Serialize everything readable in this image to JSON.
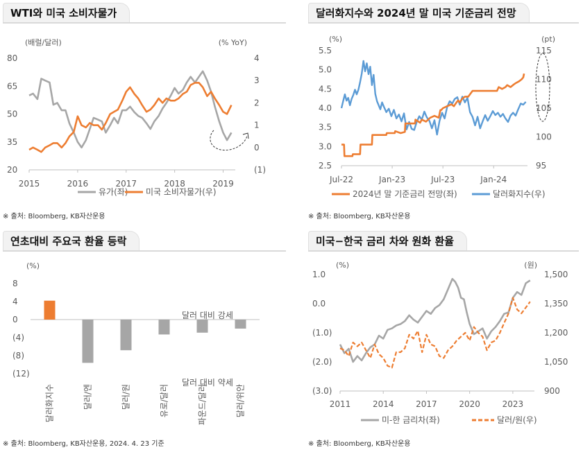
{
  "panels": [
    {
      "title": "WTI와 미국 소비자물가",
      "source": "※ 출처: Bloomberg, KB자산운용"
    },
    {
      "title": "달러화지수와 2024년 말 미국 기준금리 전망",
      "source": "※ 출처: Bloomberg, KB자산운용"
    },
    {
      "title": "연초대비 주요국 환율 등락",
      "source": "※ 출처: Bloomberg, KB자산운용, 2024. 4. 23 기준"
    },
    {
      "title": "미국−한국 금리 차와 원화 환율",
      "source": "※ 출처: Bloomberg, KB자산운용"
    }
  ],
  "chart_data": [
    {
      "type": "line",
      "left_unit": "(배럴/달러)",
      "right_unit": "(% YoY)",
      "x_ticks": [
        "2015",
        "2016",
        "2017",
        "2018",
        "2019"
      ],
      "xlim": [
        2015,
        2019.25
      ],
      "ylim_left": [
        20,
        80
      ],
      "yticks_left": [
        "20",
        "35",
        "50",
        "65",
        "80"
      ],
      "ylim_right": [
        -1,
        4
      ],
      "yticks_right": [
        "(1)",
        "0",
        "1",
        "2",
        "3",
        "4"
      ],
      "series": [
        {
          "name": "유가(좌)",
          "axis": "left",
          "color": "#a6a6a6",
          "x": [
            2015.0,
            2015.08,
            2015.17,
            2015.25,
            2015.33,
            2015.42,
            2015.5,
            2015.58,
            2015.67,
            2015.75,
            2015.83,
            2015.92,
            2016.0,
            2016.08,
            2016.17,
            2016.25,
            2016.33,
            2016.42,
            2016.5,
            2016.58,
            2016.67,
            2016.75,
            2016.83,
            2016.92,
            2017.0,
            2017.08,
            2017.17,
            2017.25,
            2017.33,
            2017.42,
            2017.5,
            2017.58,
            2017.67,
            2017.75,
            2017.83,
            2017.92,
            2018.0,
            2018.08,
            2018.17,
            2018.25,
            2018.33,
            2018.42,
            2018.5,
            2018.58,
            2018.67,
            2018.75,
            2018.83,
            2018.92,
            2019.0,
            2019.08,
            2019.17
          ],
          "y": [
            60,
            61,
            58,
            69,
            68,
            67,
            55,
            56,
            52,
            52,
            45,
            40,
            35,
            32,
            36,
            42,
            48,
            47,
            46,
            40,
            44,
            48,
            45,
            52,
            52,
            54,
            51,
            49,
            48,
            45,
            42,
            46,
            49,
            53,
            56,
            60,
            64,
            61,
            63,
            67,
            70,
            67,
            70,
            73,
            68,
            62,
            54,
            46,
            40,
            36,
            40
          ]
        },
        {
          "name": "미국 소비자물가(우)",
          "axis": "right",
          "color": "#ed7d31",
          "x": [
            2015.0,
            2015.08,
            2015.17,
            2015.25,
            2015.33,
            2015.42,
            2015.5,
            2015.58,
            2015.67,
            2015.75,
            2015.83,
            2015.92,
            2016.0,
            2016.08,
            2016.17,
            2016.25,
            2016.33,
            2016.42,
            2016.5,
            2016.58,
            2016.67,
            2016.75,
            2016.83,
            2016.92,
            2017.0,
            2017.08,
            2017.17,
            2017.25,
            2017.33,
            2017.42,
            2017.5,
            2017.58,
            2017.67,
            2017.75,
            2017.83,
            2017.92,
            2018.0,
            2018.08,
            2018.17,
            2018.25,
            2018.33,
            2018.42,
            2018.5,
            2018.58,
            2018.67,
            2018.75,
            2018.83,
            2018.92,
            2019.0,
            2019.08,
            2019.17
          ],
          "y": [
            -0.1,
            0.0,
            -0.1,
            -0.2,
            0.0,
            0.1,
            0.2,
            0.2,
            0.0,
            0.2,
            0.5,
            0.7,
            1.4,
            1.0,
            0.9,
            1.1,
            1.0,
            1.0,
            0.8,
            1.1,
            1.5,
            1.6,
            1.7,
            2.1,
            2.5,
            2.7,
            2.4,
            2.2,
            1.9,
            1.6,
            1.7,
            1.9,
            2.2,
            2.0,
            2.2,
            2.1,
            2.1,
            2.2,
            2.4,
            2.5,
            2.8,
            2.9,
            2.9,
            2.7,
            2.3,
            2.5,
            2.2,
            1.9,
            1.6,
            1.5,
            1.9
          ]
        }
      ]
    },
    {
      "type": "line",
      "left_unit": "(%)",
      "right_unit": "(pt)",
      "x_ticks": [
        "Jul-22",
        "Jan-23",
        "Jul-23",
        "Jan-24"
      ],
      "ylim_left": [
        2.5,
        5.5
      ],
      "yticks_left": [
        "2.5",
        "3.0",
        "3.5",
        "4.0",
        "4.5",
        "5.0",
        "5.5"
      ],
      "ylim_right": [
        95,
        115
      ],
      "yticks_right": [
        "95",
        "100",
        "105",
        "110",
        "115"
      ],
      "series": [
        {
          "name": "2024년 말 기준금리 전망(좌)",
          "axis": "left",
          "color": "#ed7d31",
          "x": [
            0,
            0.3,
            0.35,
            1.3,
            1.35,
            2.2,
            2.25,
            3.6,
            3.65,
            5.3,
            5.35,
            6.3,
            6.35,
            7.0,
            7.5,
            7.55,
            8.7,
            8.75,
            9.3,
            9.5,
            10.0,
            10.5,
            11.0,
            11.5,
            11.7,
            11.8,
            12.0,
            12.5,
            13.0,
            13.3,
            13.6,
            13.8,
            14.0,
            14.3,
            14.6,
            15.0,
            15.5,
            16.0,
            16.5,
            17.5,
            18.4,
            18.6,
            19.0,
            19.4,
            19.6,
            20.0,
            20.4,
            20.6,
            21.0,
            21.3,
            21.5,
            21.6
          ],
          "y": [
            3.05,
            3.05,
            2.75,
            2.75,
            2.8,
            2.8,
            3.05,
            3.05,
            3.3,
            3.3,
            3.35,
            3.35,
            3.4,
            3.35,
            3.38,
            3.6,
            3.6,
            3.7,
            3.62,
            3.7,
            3.65,
            3.75,
            3.8,
            3.75,
            3.95,
            3.95,
            4.0,
            4.05,
            4.1,
            4.05,
            4.15,
            4.2,
            4.15,
            4.25,
            4.3,
            4.3,
            4.45,
            4.45,
            4.45,
            4.45,
            4.45,
            4.55,
            4.5,
            4.55,
            4.6,
            4.55,
            4.62,
            4.65,
            4.7,
            4.75,
            4.8,
            4.9
          ]
        },
        {
          "name": "달러화지수(우)",
          "axis": "right",
          "color": "#5b9bd5",
          "x": [
            0,
            0.2,
            0.4,
            0.6,
            0.8,
            1.0,
            1.2,
            1.4,
            1.6,
            1.8,
            2.0,
            2.2,
            2.4,
            2.6,
            2.8,
            3.0,
            3.2,
            3.4,
            3.6,
            3.8,
            4.0,
            4.2,
            4.4,
            4.6,
            4.8,
            5.0,
            5.3,
            5.6,
            5.9,
            6.2,
            6.5,
            6.8,
            7.1,
            7.4,
            7.7,
            8.0,
            8.3,
            8.6,
            8.9,
            9.2,
            9.5,
            9.8,
            10.1,
            10.4,
            10.7,
            11.0,
            11.3,
            11.6,
            11.9,
            12.2,
            12.5,
            12.8,
            13.1,
            13.4,
            13.7,
            14.0,
            14.3,
            14.6,
            14.9,
            15.2,
            15.5,
            15.8,
            16.1,
            16.4,
            16.7,
            17.0,
            17.3,
            17.6,
            17.9,
            18.2,
            18.5,
            18.8,
            19.1,
            19.4,
            19.7,
            20.0,
            20.3,
            20.6,
            20.9,
            21.2,
            21.5,
            21.8
          ],
          "y": [
            105.0,
            106.2,
            107.4,
            106.3,
            106.8,
            105.5,
            106.6,
            107.3,
            108.2,
            107.4,
            108.2,
            109.5,
            111.0,
            113.2,
            111.4,
            112.8,
            110.9,
            112.2,
            109.0,
            110.8,
            107.5,
            106.2,
            105.5,
            104.8,
            106.0,
            105.3,
            104.3,
            104.9,
            103.6,
            104.7,
            103.2,
            103.9,
            102.7,
            104.1,
            101.3,
            102.6,
            101.4,
            101.2,
            102.6,
            103.6,
            103.0,
            104.4,
            103.4,
            102.8,
            101.5,
            102.9,
            100.4,
            102.8,
            104.2,
            103.2,
            105.2,
            106.2,
            105.8,
            106.6,
            106.9,
            105.6,
            107.0,
            106.0,
            106.8,
            104.3,
            103.5,
            102.0,
            103.5,
            101.5,
            102.7,
            103.8,
            102.8,
            103.6,
            104.5,
            103.8,
            104.2,
            103.5,
            104.0,
            103.2,
            102.6,
            103.7,
            104.2,
            103.7,
            104.8,
            105.8,
            105.6,
            106.1
          ]
        }
      ]
    },
    {
      "type": "bar",
      "unit": "(%)",
      "ylim": [
        -12,
        8
      ],
      "yticks": [
        "8",
        "4",
        "0",
        "(4)",
        "(8)",
        "(12)"
      ],
      "categories": [
        "달러화지수",
        "달러/엔",
        "달러/원",
        "유로/달러",
        "파운드/달러",
        "달러/위안"
      ],
      "values": [
        4.2,
        -9.6,
        -6.8,
        -3.3,
        -2.9,
        -2.0
      ],
      "colors": [
        "#ed7d31",
        "#a6a6a6",
        "#a6a6a6",
        "#a6a6a6",
        "#a6a6a6",
        "#a6a6a6"
      ],
      "annotations": [
        "달러 대비 강세",
        "달러 대비 약세"
      ]
    },
    {
      "type": "line",
      "left_unit": "(%)",
      "right_unit": "(원)",
      "x_ticks": [
        "2011",
        "2014",
        "2017",
        "2020",
        "2023"
      ],
      "xlim": [
        2011,
        2024.5
      ],
      "ylim_left": [
        -3.0,
        1.0
      ],
      "yticks_left": [
        "(3.0)",
        "(2.0)",
        "(1.0)",
        "0.0",
        "1.0"
      ],
      "ylim_right": [
        900,
        1500
      ],
      "yticks_right": [
        "900",
        "1,050",
        "1,200",
        "1,350",
        "1,500"
      ],
      "series": [
        {
          "name": "미-한 금리차(좌)",
          "axis": "left",
          "color": "#a6a6a6",
          "x": [
            2011.0,
            2011.3,
            2011.6,
            2011.9,
            2012.2,
            2012.5,
            2012.8,
            2013.1,
            2013.4,
            2013.7,
            2014.0,
            2014.3,
            2014.6,
            2014.9,
            2015.2,
            2015.5,
            2015.8,
            2016.1,
            2016.4,
            2016.7,
            2017.0,
            2017.3,
            2017.6,
            2017.9,
            2018.2,
            2018.5,
            2018.8,
            2019.0,
            2019.2,
            2019.4,
            2019.6,
            2019.8,
            2020.0,
            2020.3,
            2020.6,
            2020.9,
            2021.2,
            2021.5,
            2021.8,
            2022.1,
            2022.4,
            2022.7,
            2023.0,
            2023.3,
            2023.6,
            2023.9,
            2024.2
          ],
          "y": [
            -1.4,
            -1.7,
            -1.55,
            -2.0,
            -1.8,
            -1.95,
            -1.7,
            -1.5,
            -1.4,
            -1.1,
            -1.2,
            -0.9,
            -0.85,
            -0.75,
            -0.7,
            -0.6,
            -0.4,
            -0.55,
            -0.65,
            -0.45,
            -0.25,
            -0.35,
            -0.15,
            -0.05,
            0.15,
            0.5,
            0.85,
            0.75,
            0.55,
            0.2,
            0.15,
            -0.3,
            -0.7,
            -1.05,
            -0.95,
            -0.85,
            -1.2,
            -0.95,
            -0.8,
            -0.6,
            -0.35,
            -0.3,
            0.2,
            0.4,
            0.3,
            0.7,
            0.8
          ]
        },
        {
          "name": "달러/원(우)",
          "axis": "right",
          "color": "#ed7d31",
          "x": [
            2011.0,
            2011.3,
            2011.6,
            2011.9,
            2012.2,
            2012.5,
            2012.8,
            2013.1,
            2013.4,
            2013.7,
            2014.0,
            2014.3,
            2014.6,
            2014.9,
            2015.2,
            2015.5,
            2015.8,
            2016.1,
            2016.4,
            2016.7,
            2017.0,
            2017.3,
            2017.6,
            2017.9,
            2018.2,
            2018.5,
            2018.8,
            2019.1,
            2019.4,
            2019.7,
            2020.0,
            2020.3,
            2020.6,
            2020.9,
            2021.2,
            2021.5,
            2021.8,
            2022.1,
            2022.4,
            2022.7,
            2023.0,
            2023.3,
            2023.6,
            2023.9,
            2024.2
          ],
          "y": [
            1120,
            1110,
            1080,
            1150,
            1130,
            1150,
            1110,
            1070,
            1140,
            1090,
            1070,
            1030,
            1020,
            1100,
            1100,
            1120,
            1190,
            1170,
            1210,
            1100,
            1190,
            1140,
            1130,
            1080,
            1070,
            1110,
            1130,
            1160,
            1180,
            1200,
            1160,
            1230,
            1200,
            1180,
            1110,
            1150,
            1160,
            1200,
            1250,
            1300,
            1380,
            1320,
            1300,
            1330,
            1360
          ]
        }
      ]
    }
  ]
}
